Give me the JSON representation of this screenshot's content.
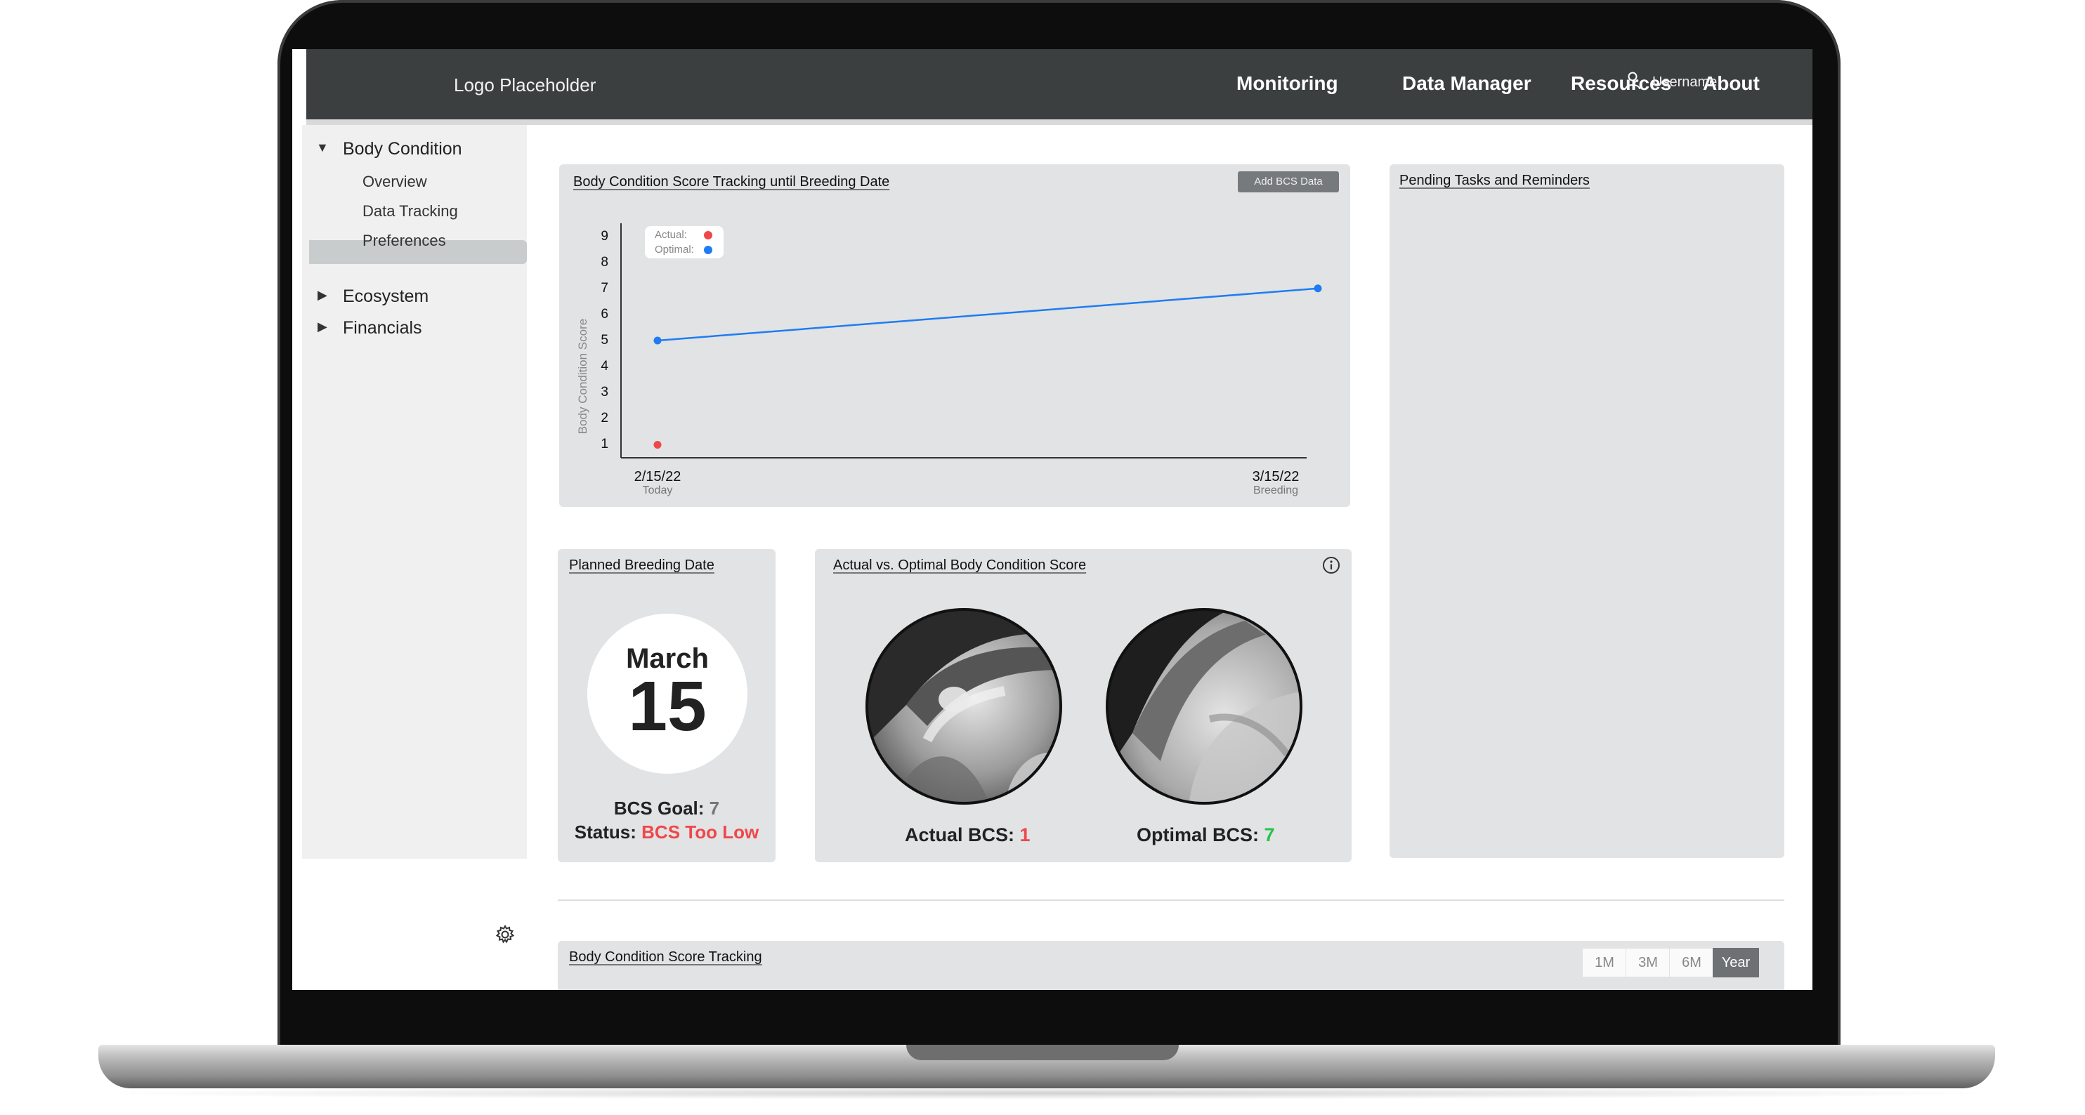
{
  "header": {
    "logo": "Logo Placeholder",
    "nav": [
      "Monitoring",
      "Data Manager",
      "Resources",
      "About"
    ],
    "username": "Username"
  },
  "sidebar": {
    "sections": [
      {
        "label": "Body Condition",
        "expanded": true,
        "items": [
          "Overview",
          "Data Tracking",
          "Preferences"
        ],
        "active": "Overview"
      },
      {
        "label": "Ecosystem",
        "expanded": false
      },
      {
        "label": "Financials",
        "expanded": false
      }
    ],
    "icons": {
      "settings": "gear-icon"
    }
  },
  "tracking_card": {
    "title": "Body Condition Score Tracking until Breeding Date",
    "button": "Add BCS Data",
    "ylabel": "Body Condition Score",
    "legend": {
      "actual": "Actual:",
      "optimal": "Optimal:"
    }
  },
  "chart_data": {
    "type": "line",
    "title": "Body Condition Score Tracking until Breeding Date",
    "ylabel": "Body Condition Score",
    "xlabel": "",
    "yticks": [
      1,
      2,
      3,
      4,
      5,
      6,
      7,
      8,
      9
    ],
    "ylim": [
      0.5,
      9.5
    ],
    "x_ticks": [
      {
        "label": "2/15/22",
        "sublabel": "Today"
      },
      {
        "label": "3/15/22",
        "sublabel": "Breeding"
      }
    ],
    "series": [
      {
        "name": "Actual:",
        "color": "#f0474a",
        "points": [
          {
            "x": "2/15/22",
            "y": 1
          }
        ]
      },
      {
        "name": "Optimal:",
        "color": "#1f7cf2",
        "points": [
          {
            "x": "2/15/22",
            "y": 5
          },
          {
            "x": "3/15/22",
            "y": 7
          }
        ]
      }
    ],
    "grid": false,
    "legend_position": "top-left"
  },
  "pending_card": {
    "title": "Pending Tasks and Reminders"
  },
  "breeding_card": {
    "title": "Planned Breeding Date",
    "month": "March",
    "day": "15",
    "goal_label": "BCS Goal:",
    "goal_value": "7",
    "status_label": "Status:",
    "status_value": "BCS Too Low"
  },
  "compare_card": {
    "title": "Actual vs. Optimal Body Condition Score",
    "actual_label": "Actual BCS:",
    "actual_value": "1",
    "optimal_label": "Optimal BCS:",
    "optimal_value": "7",
    "info_icon": "info-icon"
  },
  "bottom_card": {
    "title": "Body Condition Score Tracking",
    "ranges": [
      "1M",
      "3M",
      "6M",
      "Year"
    ],
    "active_range": "Year"
  },
  "colors": {
    "header": "#3b3f40",
    "card": "#e1e3e4",
    "actual": "#f0474a",
    "optimal": "#1f7cf2",
    "good": "#27c24c"
  }
}
